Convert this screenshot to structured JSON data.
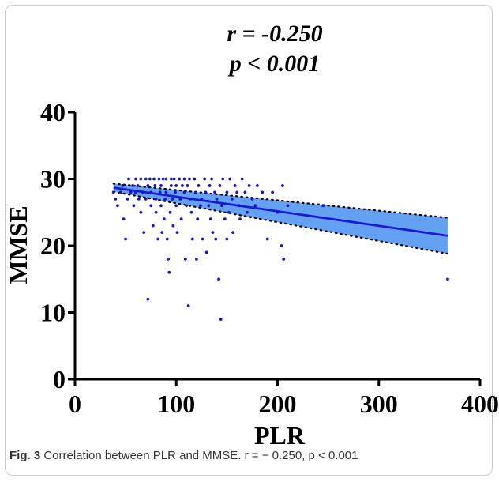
{
  "chart_data": {
    "type": "scatter",
    "title_lines": [
      "r = -0.250",
      "p < 0.001"
    ],
    "xlabel": "PLR",
    "ylabel": "MMSE",
    "xlim": [
      0,
      400
    ],
    "ylim": [
      0,
      40
    ],
    "xticks": [
      "0",
      "100",
      "200",
      "300",
      "400"
    ],
    "yticks": [
      "0",
      "10",
      "20",
      "30",
      "40"
    ],
    "grid": false,
    "regression": {
      "x": [
        38,
        368
      ],
      "y": [
        28.7,
        21.5
      ],
      "ci_lower": [
        28.1,
        18.8
      ],
      "ci_upper": [
        29.3,
        24.2
      ]
    },
    "points": [
      [
        38,
        28
      ],
      [
        40,
        27
      ],
      [
        42,
        26
      ],
      [
        45,
        28
      ],
      [
        47,
        29
      ],
      [
        48,
        24
      ],
      [
        50,
        21
      ],
      [
        52,
        27
      ],
      [
        53,
        30
      ],
      [
        55,
        28
      ],
      [
        57,
        29
      ],
      [
        58,
        26
      ],
      [
        60,
        30
      ],
      [
        60,
        28
      ],
      [
        62,
        29
      ],
      [
        63,
        27
      ],
      [
        65,
        30
      ],
      [
        65,
        25
      ],
      [
        67,
        28
      ],
      [
        68,
        22
      ],
      [
        70,
        30
      ],
      [
        70,
        27
      ],
      [
        72,
        29
      ],
      [
        72,
        12
      ],
      [
        74,
        30
      ],
      [
        75,
        28
      ],
      [
        75,
        26
      ],
      [
        77,
        23
      ],
      [
        78,
        30
      ],
      [
        79,
        29
      ],
      [
        80,
        27
      ],
      [
        80,
        25
      ],
      [
        82,
        21
      ],
      [
        83,
        30
      ],
      [
        84,
        28
      ],
      [
        85,
        29
      ],
      [
        85,
        26
      ],
      [
        86,
        22
      ],
      [
        87,
        30
      ],
      [
        88,
        24
      ],
      [
        89,
        27
      ],
      [
        90,
        30
      ],
      [
        90,
        28
      ],
      [
        91,
        21
      ],
      [
        92,
        18
      ],
      [
        93,
        16
      ],
      [
        94,
        25
      ],
      [
        95,
        30
      ],
      [
        95,
        29
      ],
      [
        96,
        27
      ],
      [
        97,
        23
      ],
      [
        98,
        30
      ],
      [
        99,
        28
      ],
      [
        100,
        29
      ],
      [
        100,
        26
      ],
      [
        101,
        22
      ],
      [
        103,
        30
      ],
      [
        104,
        27
      ],
      [
        105,
        24
      ],
      [
        106,
        29
      ],
      [
        108,
        30
      ],
      [
        108,
        28
      ],
      [
        109,
        18
      ],
      [
        110,
        26
      ],
      [
        111,
        29
      ],
      [
        112,
        11
      ],
      [
        113,
        30
      ],
      [
        114,
        27
      ],
      [
        115,
        25
      ],
      [
        116,
        21
      ],
      [
        118,
        30
      ],
      [
        119,
        28
      ],
      [
        120,
        18
      ],
      [
        121,
        24
      ],
      [
        122,
        29
      ],
      [
        124,
        26
      ],
      [
        125,
        27
      ],
      [
        126,
        21
      ],
      [
        128,
        30
      ],
      [
        129,
        28
      ],
      [
        130,
        19
      ],
      [
        132,
        26
      ],
      [
        133,
        29
      ],
      [
        134,
        24
      ],
      [
        135,
        30
      ],
      [
        136,
        22
      ],
      [
        138,
        28
      ],
      [
        139,
        21
      ],
      [
        140,
        27
      ],
      [
        142,
        15
      ],
      [
        143,
        29
      ],
      [
        144,
        9
      ],
      [
        145,
        26
      ],
      [
        146,
        30
      ],
      [
        148,
        24
      ],
      [
        150,
        28
      ],
      [
        150,
        21
      ],
      [
        152,
        25
      ],
      [
        153,
        30
      ],
      [
        155,
        27
      ],
      [
        156,
        22
      ],
      [
        158,
        29
      ],
      [
        160,
        28
      ],
      [
        162,
        26
      ],
      [
        163,
        24
      ],
      [
        165,
        30
      ],
      [
        168,
        28
      ],
      [
        170,
        25
      ],
      [
        172,
        29
      ],
      [
        175,
        27
      ],
      [
        178,
        26
      ],
      [
        180,
        29
      ],
      [
        185,
        28
      ],
      [
        190,
        21
      ],
      [
        195,
        28
      ],
      [
        200,
        25
      ],
      [
        204,
        20
      ],
      [
        205,
        29
      ],
      [
        206,
        18
      ],
      [
        210,
        26
      ],
      [
        245,
        26
      ],
      [
        368,
        15
      ]
    ]
  },
  "caption": {
    "label": "Fig. 3",
    "text": "Correlation between PLR and MMSE. r = − 0.250, p < 0.001"
  },
  "colors": {
    "points": "#1616c8",
    "line": "#1a1ad6",
    "band": "#4a90f0",
    "axis": "#000000"
  }
}
